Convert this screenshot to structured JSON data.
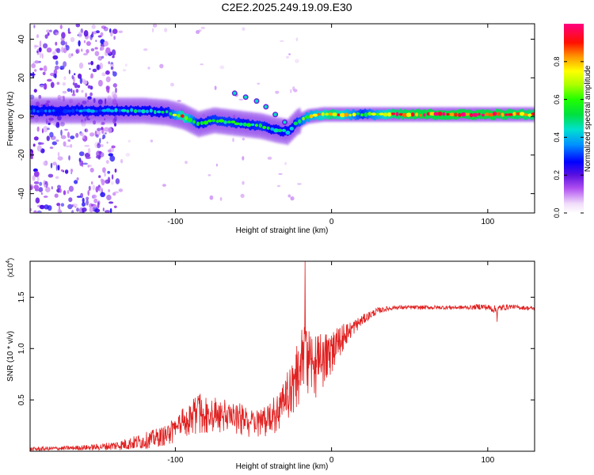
{
  "title": "C2E2.2025.249.19.09.E30",
  "chart_data": [
    {
      "type": "heatmap",
      "title": "C2E2.2025.249.19.09.E30",
      "xlabel": "Height of straight line (km)",
      "ylabel": "Frequency (Hz)",
      "xlim": [
        -193,
        130
      ],
      "ylim": [
        -50,
        48
      ],
      "xticks": [
        -100,
        0,
        100
      ],
      "yticks": [
        -40,
        -20,
        0,
        20,
        40
      ],
      "colorbar": {
        "label": "Normalized spectral amplitude",
        "range": [
          0,
          1
        ],
        "ticks": [
          0.0,
          0.2,
          0.4,
          0.6,
          0.8
        ]
      },
      "ridge": {
        "description": "frequency of strongest spectral line vs height",
        "x": [
          -190,
          -170,
          -150,
          -135,
          -120,
          -105,
          -95,
          -85,
          -75,
          -65,
          -55,
          -45,
          -35,
          -28,
          -22,
          -15,
          -5,
          0,
          10,
          20,
          40,
          60,
          80,
          100,
          130
        ],
        "y": [
          3,
          3,
          3,
          3,
          3,
          2,
          0,
          -4,
          -2,
          -3,
          -4,
          -5,
          -7,
          -8,
          -3,
          0,
          1,
          1,
          1,
          1,
          1,
          1,
          1,
          1,
          1
        ],
        "amplitude": [
          0.3,
          0.35,
          0.35,
          0.4,
          0.45,
          0.5,
          0.85,
          0.5,
          0.55,
          0.55,
          0.5,
          0.55,
          0.45,
          0.4,
          0.55,
          0.7,
          0.8,
          0.9,
          0.75,
          0.55,
          0.9,
          0.95,
          0.95,
          0.95,
          0.9
        ]
      },
      "secondary_branch": {
        "x": [
          -62,
          -55,
          -48,
          -42,
          -36,
          -30
        ],
        "y": [
          12,
          10,
          8,
          5,
          1,
          -3
        ]
      },
      "noisy_region_x": [
        -193,
        -137
      ]
    },
    {
      "type": "line",
      "xlabel": "Height of straight line (km)",
      "ylabel": "SNR (10 * v/v)",
      "yscale_label": "(x10",
      "yscale_exponent": "4",
      "xlim": [
        -193,
        130
      ],
      "ylim": [
        0,
        1.85
      ],
      "xticks": [
        -100,
        0,
        100
      ],
      "yticks": [
        0.5,
        1.0,
        1.5
      ],
      "ytick_labels": [
        "0.5",
        "1.0",
        "1.5"
      ],
      "series": [
        {
          "name": "SNR",
          "color": "#e02020",
          "x": [
            -193,
            -170,
            -150,
            -135,
            -120,
            -105,
            -95,
            -90,
            -85,
            -80,
            -75,
            -70,
            -65,
            -60,
            -55,
            -50,
            -45,
            -40,
            -35,
            -30,
            -25,
            -20,
            -17,
            -15,
            -10,
            -5,
            0,
            5,
            10,
            15,
            20,
            25,
            30,
            40,
            50,
            60,
            70,
            80,
            90,
            95,
            100,
            105,
            110,
            115,
            120,
            130
          ],
          "values": [
            0.02,
            0.03,
            0.04,
            0.06,
            0.1,
            0.16,
            0.25,
            0.32,
            0.35,
            0.34,
            0.33,
            0.32,
            0.3,
            0.3,
            0.28,
            0.27,
            0.28,
            0.3,
            0.35,
            0.45,
            0.6,
            0.75,
            1.0,
            0.85,
            0.8,
            0.85,
            0.95,
            1.05,
            1.15,
            1.22,
            1.28,
            1.33,
            1.37,
            1.4,
            1.4,
            1.4,
            1.4,
            1.4,
            1.4,
            1.41,
            1.4,
            1.38,
            1.4,
            1.41,
            1.4,
            1.39
          ]
        }
      ],
      "spikes": [
        {
          "x": -17,
          "value": 1.85
        },
        {
          "x": 106,
          "value": 1.26
        }
      ],
      "noise_amplitude": [
        0.02,
        0.02,
        0.03,
        0.05,
        0.08,
        0.1,
        0.15,
        0.17,
        0.18,
        0.17,
        0.16,
        0.16,
        0.15,
        0.15,
        0.14,
        0.14,
        0.14,
        0.15,
        0.18,
        0.22,
        0.28,
        0.32,
        0.3,
        0.3,
        0.28,
        0.25,
        0.2,
        0.15,
        0.1,
        0.07,
        0.05,
        0.04,
        0.03,
        0.02,
        0.02,
        0.02,
        0.02,
        0.02,
        0.02,
        0.03,
        0.03,
        0.04,
        0.03,
        0.02,
        0.02,
        0.02
      ]
    }
  ]
}
